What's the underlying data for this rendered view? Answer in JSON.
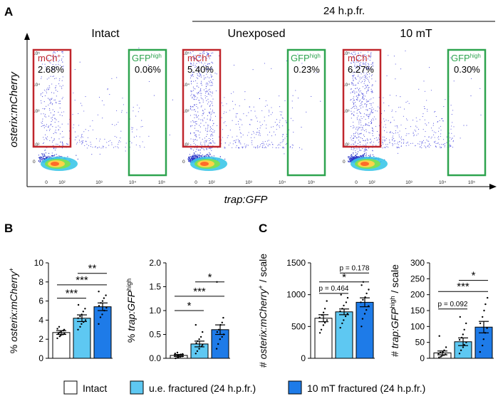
{
  "figure": {
    "panel_a": {
      "letter": "A",
      "group_label": "24 h.p.fr.",
      "y_axis_label": "osterix:mCherry",
      "x_axis_label": "trap:GFP"
    },
    "panel_b": {
      "letter": "B"
    },
    "panel_c": {
      "letter": "C"
    },
    "legend": [
      {
        "label": "Intact",
        "color": "#ffffff"
      },
      {
        "label": "u.e. fractured (24 h.p.fr.)",
        "color": "#5ec8f2"
      },
      {
        "label": "10 mT fractured (24 h.p.fr.)",
        "color": "#1e7be8"
      }
    ]
  },
  "chart_data": [
    {
      "type": "scatter",
      "panel": "A",
      "title": "Intact",
      "x_ticks": [
        "0",
        "10²",
        "10³",
        "10⁴",
        "10⁵"
      ],
      "y_ticks": [
        "0",
        "10²",
        "10³",
        "10⁴",
        "10⁵"
      ],
      "gates": [
        {
          "name": "mCh",
          "superscript": "+",
          "percent": "2.68%",
          "color": "#c0262c"
        },
        {
          "name": "GFP",
          "superscript": "high",
          "percent": "0.06%",
          "color": "#2ea44f"
        }
      ]
    },
    {
      "type": "scatter",
      "panel": "A",
      "title": "Unexposed",
      "x_ticks": [
        "0",
        "10²",
        "10³",
        "10⁴",
        "10⁵"
      ],
      "y_ticks": [
        "0",
        "10²",
        "10³",
        "10⁴",
        "10⁵"
      ],
      "gates": [
        {
          "name": "mCh",
          "superscript": "+",
          "percent": "5.40%",
          "color": "#c0262c"
        },
        {
          "name": "GFP",
          "superscript": "high",
          "percent": "0.23%",
          "color": "#2ea44f"
        }
      ]
    },
    {
      "type": "scatter",
      "panel": "A",
      "title": "10 mT",
      "x_ticks": [
        "0",
        "10²",
        "10³",
        "10⁴",
        "10⁵"
      ],
      "y_ticks": [
        "0",
        "10²",
        "10³",
        "10⁴",
        "10⁵"
      ],
      "gates": [
        {
          "name": "mCh",
          "superscript": "+",
          "percent": "6.27%",
          "color": "#c0262c"
        },
        {
          "name": "GFP",
          "superscript": "high",
          "percent": "0.30%",
          "color": "#2ea44f"
        }
      ]
    },
    {
      "type": "bar",
      "panel": "B",
      "ylabel_prefix": "% ",
      "ylabel_italic": "osterix:mCherry",
      "ylabel_sup": "+",
      "ylabel_suffix": "",
      "ylim": [
        0,
        10
      ],
      "yticks": [
        0,
        2,
        4,
        6,
        8,
        10
      ],
      "categories": [
        "Intact",
        "u.e. fractured (24 h.p.fr.)",
        "10 mT fractured (24 h.p.fr.)"
      ],
      "values": [
        2.7,
        4.2,
        5.4
      ],
      "errors": [
        0.2,
        0.35,
        0.4
      ],
      "points": [
        [
          2.1,
          2.3,
          2.4,
          2.5,
          2.6,
          2.6,
          2.7,
          2.8,
          2.9,
          3.0,
          3.1,
          3.3
        ],
        [
          3.0,
          3.3,
          3.6,
          3.8,
          4.0,
          4.2,
          4.4,
          4.6,
          4.9,
          5.2,
          5.6
        ],
        [
          3.6,
          4.3,
          4.6,
          5.0,
          5.3,
          5.5,
          5.8,
          6.0,
          6.3,
          6.6,
          7.0
        ]
      ],
      "significance": [
        {
          "a": 0,
          "b": 1,
          "label": "***",
          "y": 6.3
        },
        {
          "a": 0,
          "b": 2,
          "label": "***",
          "y": 7.7
        },
        {
          "a": 1,
          "b": 2,
          "label": "**",
          "y": 8.9
        }
      ]
    },
    {
      "type": "bar",
      "panel": "B",
      "ylabel_prefix": "% ",
      "ylabel_italic": "trap:GFP",
      "ylabel_sup": "high",
      "ylabel_suffix": "",
      "ylim": [
        0,
        2.0
      ],
      "yticks": [
        0,
        0.5,
        1.0,
        1.5,
        2.0
      ],
      "ytick_labels": [
        "0.0",
        "0.5",
        "1.0",
        "1.5",
        "2.0"
      ],
      "categories": [
        "Intact",
        "u.e. fractured (24 h.p.fr.)",
        "10 mT fractured (24 h.p.fr.)"
      ],
      "values": [
        0.06,
        0.3,
        0.6
      ],
      "errors": [
        0.02,
        0.06,
        0.1
      ],
      "points": [
        [
          0.0,
          0.01,
          0.02,
          0.03,
          0.04,
          0.05,
          0.06,
          0.07,
          0.08,
          0.09,
          0.1,
          0.12
        ],
        [
          0.1,
          0.15,
          0.2,
          0.25,
          0.28,
          0.32,
          0.36,
          0.4,
          0.45,
          0.55,
          0.7
        ],
        [
          0.2,
          0.3,
          0.4,
          0.45,
          0.5,
          0.55,
          0.6,
          0.7,
          0.75,
          0.85,
          1.6
        ]
      ],
      "significance": [
        {
          "a": 0,
          "b": 1,
          "label": "*",
          "y": 1.0
        },
        {
          "a": 0,
          "b": 2,
          "label": "***",
          "y": 1.3
        },
        {
          "a": 1,
          "b": 2,
          "label": "*",
          "y": 1.6
        }
      ]
    },
    {
      "type": "bar",
      "panel": "C",
      "ylabel_prefix": "# ",
      "ylabel_italic": "osterix:mCherry",
      "ylabel_sup": "+",
      "ylabel_suffix": " / scale",
      "ylim": [
        0,
        1500
      ],
      "yticks": [
        0,
        500,
        1000,
        1500
      ],
      "categories": [
        "Intact",
        "u.e. fractured (24 h.p.fr.)",
        "10 mT fractured (24 h.p.fr.)"
      ],
      "values": [
        630,
        730,
        880
      ],
      "errors": [
        55,
        45,
        70
      ],
      "points": [
        [
          400,
          450,
          520,
          560,
          600,
          640,
          680,
          720,
          780,
          900
        ],
        [
          480,
          550,
          600,
          660,
          700,
          740,
          780,
          830,
          880,
          950,
          1000
        ],
        [
          500,
          620,
          700,
          760,
          820,
          880,
          920,
          960,
          1020,
          1080,
          1150,
          1200
        ]
      ],
      "significance": [
        {
          "a": 0,
          "b": 1,
          "label": "p = 0.464",
          "y": 1020
        },
        {
          "a": 0,
          "b": 2,
          "label": "*",
          "y": 1200
        },
        {
          "a": 1,
          "b": 2,
          "label": "p = 0.178",
          "y": 1340
        }
      ]
    },
    {
      "type": "bar",
      "panel": "C",
      "ylabel_prefix": "# ",
      "ylabel_italic": "trap:GFP",
      "ylabel_sup": "high",
      "ylabel_suffix": " / scale",
      "ylim": [
        0,
        300
      ],
      "yticks": [
        0,
        50,
        100,
        150,
        200,
        250,
        300
      ],
      "categories": [
        "Intact",
        "u.e. fractured (24 h.p.fr.)",
        "10 mT fractured (24 h.p.fr.)"
      ],
      "values": [
        17,
        52,
        98
      ],
      "errors": [
        6,
        12,
        18
      ],
      "points": [
        [
          3,
          5,
          8,
          10,
          12,
          15,
          18,
          20,
          25,
          35,
          70
        ],
        [
          15,
          25,
          35,
          42,
          50,
          58,
          65,
          75,
          90,
          110,
          130
        ],
        [
          20,
          40,
          60,
          80,
          95,
          110,
          130,
          150,
          170,
          190
        ]
      ],
      "significance": [
        {
          "a": 0,
          "b": 1,
          "label": "p = 0.092",
          "y": 155
        },
        {
          "a": 0,
          "b": 2,
          "label": "***",
          "y": 210
        },
        {
          "a": 1,
          "b": 2,
          "label": "*",
          "y": 245
        }
      ]
    }
  ]
}
